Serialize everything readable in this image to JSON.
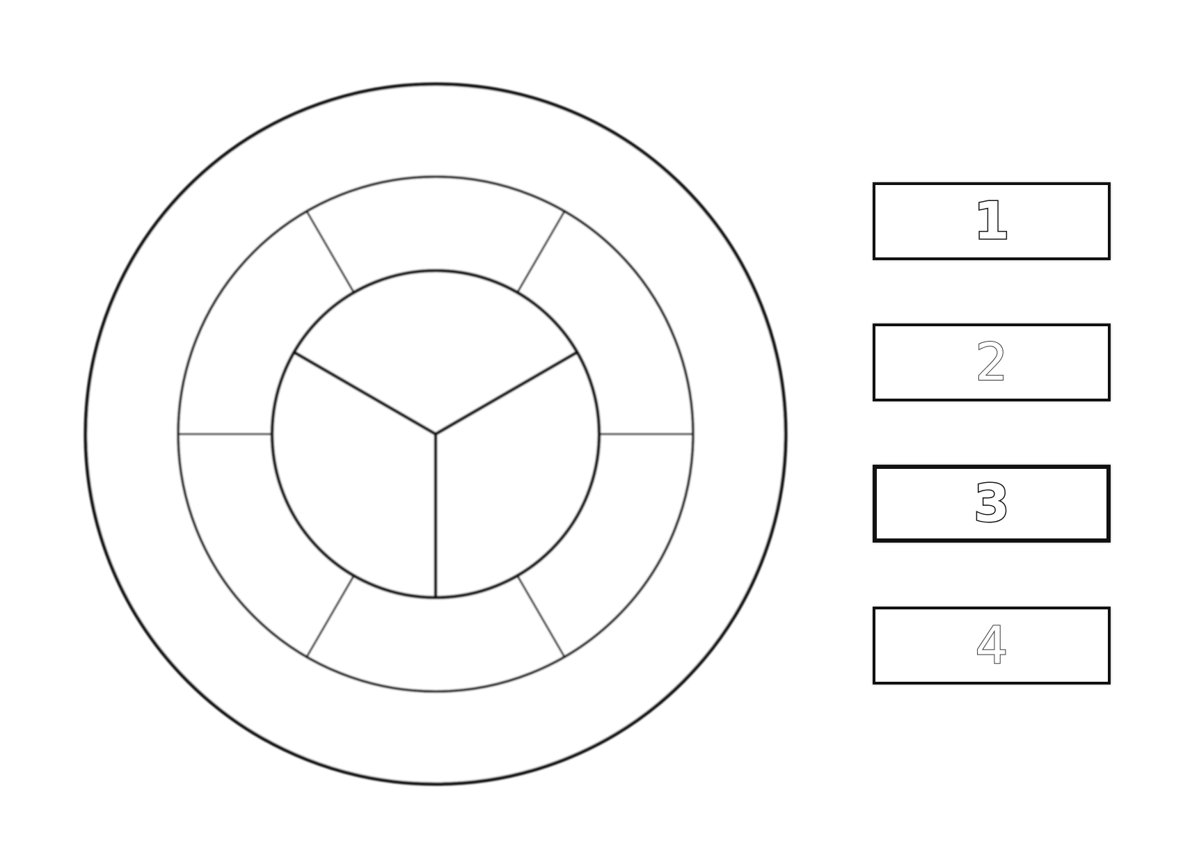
{
  "legend": {
    "items": [
      {
        "label": "1"
      },
      {
        "label": "2"
      },
      {
        "label": "3"
      },
      {
        "label": "4"
      }
    ]
  },
  "wheel": {
    "rings": [
      "outer-ring",
      "middle-ring",
      "inner-circle"
    ],
    "middle_ring_segments": 6,
    "inner_circle_segments": 3,
    "stroke_color": "#111111",
    "fill_color": "#ffffff"
  }
}
